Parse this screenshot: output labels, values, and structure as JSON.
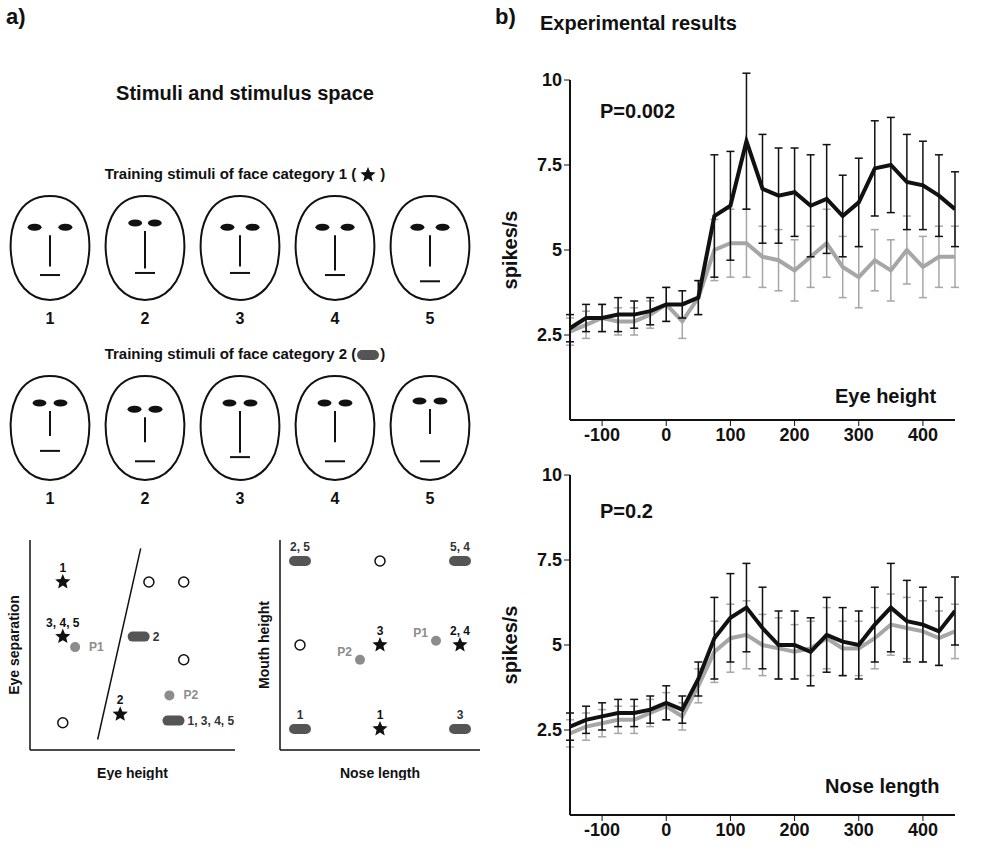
{
  "panel_a": {
    "label": "a)",
    "title": "Stimuli and stimulus space",
    "categories": [
      {
        "title": [
          "Training stimuli of face category 1 (",
          ")"
        ],
        "marker": "star",
        "color": "#111111",
        "faces": [
          {
            "label": "1",
            "eye_height": 0.3,
            "eye_separation": 0.44,
            "nose_length": 0.3,
            "mouth_height": 0.76
          },
          {
            "label": "2",
            "eye_height": 0.26,
            "eye_separation": 0.28,
            "nose_length": 0.36,
            "mouth_height": 0.74
          },
          {
            "label": "3",
            "eye_height": 0.3,
            "eye_separation": 0.36,
            "nose_length": 0.3,
            "mouth_height": 0.74
          },
          {
            "label": "4",
            "eye_height": 0.3,
            "eye_separation": 0.36,
            "nose_length": 0.34,
            "mouth_height": 0.76
          },
          {
            "label": "5",
            "eye_height": 0.3,
            "eye_separation": 0.36,
            "nose_length": 0.3,
            "mouth_height": 0.82
          }
        ]
      },
      {
        "title": [
          "Training stimuli of face category 2 (",
          ")"
        ],
        "marker": "pill",
        "color": "#555555",
        "faces": [
          {
            "label": "1",
            "eye_height": 0.26,
            "eye_separation": 0.3,
            "nose_length": 0.24,
            "mouth_height": 0.72
          },
          {
            "label": "2",
            "eye_height": 0.32,
            "eye_separation": 0.3,
            "nose_length": 0.24,
            "mouth_height": 0.82
          },
          {
            "label": "3",
            "eye_height": 0.26,
            "eye_separation": 0.3,
            "nose_length": 0.4,
            "mouth_height": 0.78
          },
          {
            "label": "4",
            "eye_height": 0.26,
            "eye_separation": 0.3,
            "nose_length": 0.3,
            "mouth_height": 0.82
          },
          {
            "label": "5",
            "eye_height": 0.24,
            "eye_separation": 0.3,
            "nose_length": 0.24,
            "mouth_height": 0.82
          }
        ]
      }
    ]
  },
  "panel_b": {
    "label": "b)",
    "title": "Experimental results"
  },
  "chart_data": [
    {
      "type": "scatter",
      "xlabel": "Eye height",
      "ylabel": "Eye separation",
      "xlim": [
        0,
        10
      ],
      "ylim": [
        0,
        10
      ],
      "tick_labels": false,
      "series": [
        {
          "marker": "star",
          "color": "#111111",
          "x": [
            1.6,
            1.6,
            4.4
          ],
          "y": [
            8.0,
            5.4,
            1.7
          ],
          "labels": [
            "1",
            "3, 4, 5",
            "2"
          ]
        },
        {
          "marker": "pill",
          "color": "#555555",
          "x": [
            5.3,
            7.0
          ],
          "y": [
            5.4,
            1.4
          ],
          "labels": [
            "2",
            "1, 3, 4, 5"
          ]
        },
        {
          "marker": "circle",
          "color": "#111111",
          "x": [
            5.8,
            7.5,
            7.5,
            1.6
          ],
          "y": [
            8.0,
            8.0,
            4.3,
            1.3
          ]
        },
        {
          "marker": "dot",
          "color": "#8c8c8c",
          "x": [
            2.2,
            6.8
          ],
          "y": [
            4.9,
            2.6
          ],
          "labels": [
            "P1",
            "P2"
          ]
        }
      ],
      "boundary": {
        "x": [
          5.4,
          3.3
        ],
        "y": [
          9.6,
          0.5
        ]
      }
    },
    {
      "type": "scatter",
      "xlabel": "Nose length",
      "ylabel": "Mouth height",
      "xlim": [
        0,
        10
      ],
      "ylim": [
        0,
        10
      ],
      "tick_labels": false,
      "series": [
        {
          "marker": "star",
          "color": "#111111",
          "x": [
            5,
            9,
            5
          ],
          "y": [
            5,
            5,
            1
          ],
          "labels": [
            "3",
            "2, 4",
            "1"
          ]
        },
        {
          "marker": "pill",
          "color": "#555555",
          "x": [
            1,
            9,
            1,
            9
          ],
          "y": [
            9,
            9,
            1,
            1
          ],
          "labels": [
            "2, 5",
            "5, 4",
            "1",
            "3"
          ]
        },
        {
          "marker": "circle",
          "color": "#111111",
          "x": [
            5,
            1
          ],
          "y": [
            9,
            5
          ]
        },
        {
          "marker": "dot",
          "color": "#8c8c8c",
          "x": [
            7.8,
            4
          ],
          "y": [
            5.2,
            4.3
          ],
          "labels": [
            "P1",
            "P2"
          ]
        }
      ]
    },
    {
      "type": "line",
      "ylabel": "spikes/s",
      "annotations": [
        "P=0.002",
        "Eye height"
      ],
      "x": [
        -150,
        -125,
        -100,
        -75,
        -50,
        -25,
        0,
        25,
        50,
        75,
        100,
        125,
        150,
        175,
        200,
        225,
        250,
        275,
        300,
        325,
        350,
        375,
        400,
        425,
        450
      ],
      "xlim": [
        -150,
        450
      ],
      "xticks": [
        -100,
        0,
        100,
        200,
        300,
        400
      ],
      "ylim": [
        0,
        10
      ],
      "yticks": [
        2.5,
        5,
        7.5,
        10
      ],
      "series": [
        {
          "color": "#a6a6a6",
          "values": [
            2.6,
            2.8,
            3.0,
            2.9,
            2.9,
            3.1,
            3.4,
            2.9,
            3.6,
            5.0,
            5.2,
            5.2,
            4.8,
            4.7,
            4.4,
            4.8,
            5.2,
            4.5,
            4.2,
            4.7,
            4.4,
            5.0,
            4.5,
            4.8,
            4.8
          ],
          "error": [
            0.4,
            0.4,
            0.4,
            0.4,
            0.4,
            0.4,
            0.5,
            0.5,
            0.5,
            0.9,
            1.0,
            1.0,
            0.9,
            0.9,
            0.9,
            0.9,
            1.0,
            0.9,
            0.9,
            0.9,
            0.9,
            1.0,
            0.9,
            0.9,
            0.9
          ]
        },
        {
          "color": "#111111",
          "values": [
            2.7,
            3.0,
            3.0,
            3.1,
            3.1,
            3.2,
            3.4,
            3.4,
            3.6,
            6.0,
            6.3,
            8.2,
            6.8,
            6.6,
            6.7,
            6.3,
            6.5,
            6.0,
            6.4,
            7.4,
            7.5,
            7.0,
            6.9,
            6.6,
            6.2
          ],
          "error": [
            0.4,
            0.4,
            0.4,
            0.5,
            0.4,
            0.4,
            0.5,
            0.4,
            0.5,
            1.8,
            1.6,
            2.0,
            1.6,
            1.4,
            1.3,
            1.5,
            1.6,
            1.2,
            1.3,
            1.4,
            1.4,
            1.4,
            1.3,
            1.2,
            1.1
          ]
        }
      ]
    },
    {
      "type": "line",
      "ylabel": "spikes/s",
      "annotations": [
        "P=0.2",
        "Nose length"
      ],
      "x": [
        -150,
        -125,
        -100,
        -75,
        -50,
        -25,
        0,
        25,
        50,
        75,
        100,
        125,
        150,
        175,
        200,
        225,
        250,
        275,
        300,
        325,
        350,
        375,
        400,
        425,
        450
      ],
      "xlim": [
        -150,
        450
      ],
      "xticks": [
        -100,
        0,
        100,
        200,
        300,
        400
      ],
      "ylim": [
        0,
        10
      ],
      "yticks": [
        2.5,
        5,
        7.5,
        10
      ],
      "series": [
        {
          "color": "#a6a6a6",
          "values": [
            2.4,
            2.6,
            2.7,
            2.8,
            2.8,
            3.0,
            3.2,
            2.9,
            3.8,
            4.8,
            5.2,
            5.3,
            5.0,
            4.9,
            4.8,
            4.9,
            5.2,
            4.9,
            4.9,
            5.2,
            5.6,
            5.5,
            5.4,
            5.2,
            5.4
          ],
          "error": [
            0.4,
            0.4,
            0.4,
            0.4,
            0.4,
            0.4,
            0.4,
            0.4,
            0.5,
            0.9,
            1.0,
            1.0,
            0.9,
            0.9,
            0.8,
            0.8,
            0.9,
            0.8,
            0.8,
            0.9,
            0.9,
            0.9,
            0.9,
            0.8,
            0.8
          ]
        },
        {
          "color": "#111111",
          "values": [
            2.6,
            2.8,
            2.9,
            3.0,
            3.0,
            3.1,
            3.3,
            3.1,
            4.0,
            5.2,
            5.8,
            6.1,
            5.5,
            5.0,
            5.0,
            4.8,
            5.3,
            5.1,
            5.0,
            5.6,
            6.1,
            5.7,
            5.6,
            5.4,
            6.0
          ],
          "error": [
            0.4,
            0.4,
            0.4,
            0.4,
            0.4,
            0.4,
            0.5,
            0.4,
            0.5,
            1.2,
            1.3,
            1.3,
            1.2,
            1.0,
            1.0,
            1.0,
            1.1,
            1.0,
            1.0,
            1.1,
            1.3,
            1.2,
            1.1,
            1.0,
            1.0
          ]
        }
      ]
    }
  ]
}
